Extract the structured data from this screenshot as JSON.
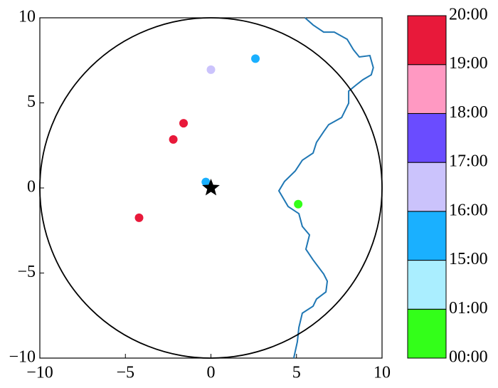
{
  "chart_data": {
    "type": "scatter",
    "xlim": [
      -10,
      10
    ],
    "ylim": [
      -10,
      10
    ],
    "xticks": [
      {
        "value": -10,
        "label": "−10"
      },
      {
        "value": -5,
        "label": "−5"
      },
      0,
      5,
      10
    ],
    "yticks": [
      {
        "value": -10,
        "label": "−10"
      },
      {
        "value": -5,
        "label": "−5"
      },
      0,
      5,
      10
    ],
    "circle_radius": 10,
    "points": {
      "x": [
        2.6,
        0.0,
        -1.6,
        -2.2,
        -0.3,
        5.1,
        -4.2
      ],
      "y": [
        7.6,
        6.95,
        3.8,
        2.85,
        0.35,
        -0.95,
        -1.75
      ],
      "colors": [
        "#1ab0ff",
        "#cbc3fc",
        "#e8193a",
        "#e8193a",
        "#1ab0ff",
        "#33ff19",
        "#e8193a"
      ]
    },
    "center": {
      "x": 0,
      "y": 0,
      "color": "#000000"
    },
    "coastline": {
      "color": "#1f77b4",
      "x": [
        5.5,
        5.97,
        6.59,
        7.21,
        7.96,
        8.33,
        8.67,
        9.29,
        9.49,
        9.37,
        8.88,
        8.46,
        8.05,
        8.05,
        7.64,
        6.88,
        6.59,
        6.17,
        5.97,
        5.34,
        4.93,
        4.3,
        3.97,
        4.51,
        5.14,
        5.34,
        5.76,
        5.55,
        5.97,
        6.59,
        6.8,
        6.72,
        6.17,
        5.97,
        5.34,
        5.14,
        5.05,
        4.84
      ],
      "y": [
        10.0,
        9.58,
        9.16,
        9.16,
        8.74,
        8.12,
        7.7,
        7.78,
        7.07,
        6.65,
        6.36,
        6.03,
        5.69,
        4.98,
        4.14,
        3.72,
        3.31,
        2.68,
        2.05,
        1.63,
        1.0,
        0.38,
        -0.17,
        -1.09,
        -1.51,
        -2.26,
        -2.76,
        -3.6,
        -4.23,
        -5.06,
        -5.48,
        -6.11,
        -6.53,
        -6.95,
        -7.36,
        -8.2,
        -9.04,
        -10.0
      ]
    },
    "colorbar": {
      "colors": [
        "#33ff19",
        "#aaeeff",
        "#1ab0ff",
        "#cbc3fc",
        "#6a4cff",
        "#ff99c2",
        "#e8193a"
      ],
      "ticks": [
        "00:00",
        "01:00",
        "15:00",
        "16:00",
        "17:00",
        "18:00",
        "19:00",
        "20:00"
      ]
    }
  }
}
